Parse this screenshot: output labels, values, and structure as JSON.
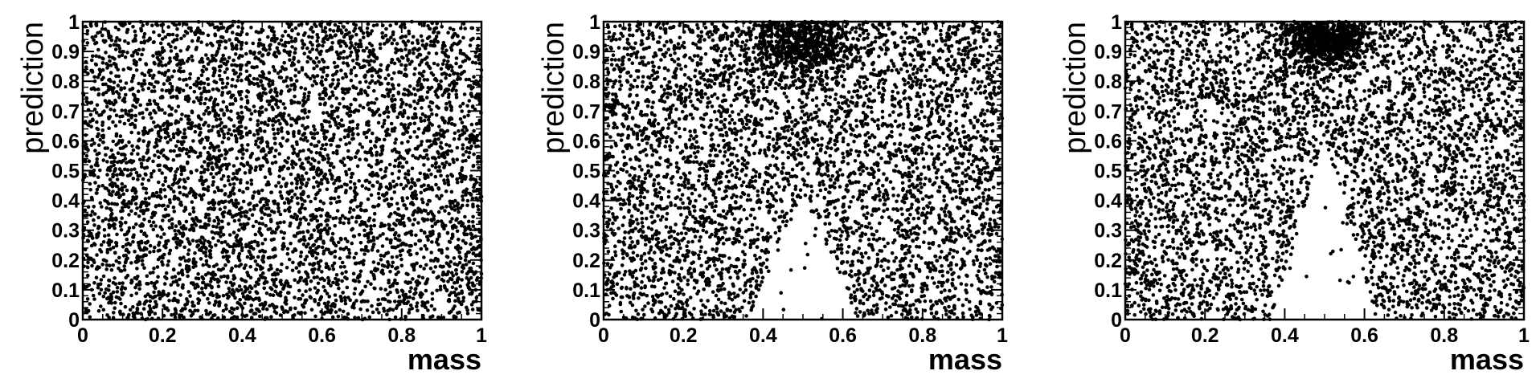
{
  "chart_data": [
    {
      "type": "scatter",
      "xlabel": "mass",
      "ylabel": "prediction",
      "xlim": [
        0,
        1
      ],
      "ylim": [
        0,
        1
      ],
      "x_ticks": [
        "0",
        "0.2",
        "0.4",
        "0.6",
        "0.8",
        "1"
      ],
      "y_ticks": [
        "0",
        "0.1",
        "0.2",
        "0.3",
        "0.4",
        "0.5",
        "0.6",
        "0.7",
        "0.8",
        "0.9",
        "1"
      ],
      "grid": false,
      "point_color": "#000000",
      "distribution": "uniform over the full mass-prediction square, no visible structure"
    },
    {
      "type": "scatter",
      "xlabel": "mass",
      "ylabel": "prediction",
      "xlim": [
        0,
        1
      ],
      "ylim": [
        0,
        1
      ],
      "x_ticks": [
        "0",
        "0.2",
        "0.4",
        "0.6",
        "0.8",
        "1"
      ],
      "y_ticks": [
        "0",
        "0.1",
        "0.2",
        "0.3",
        "0.4",
        "0.5",
        "0.6",
        "0.7",
        "0.8",
        "0.9",
        "1"
      ],
      "grid": false,
      "point_color": "#000000",
      "distribution": "dense cluster near mass 0.5 at prediction above 0.8; sparse region for mass 0.4-0.6 below prediction 0.4"
    },
    {
      "type": "scatter",
      "xlabel": "mass",
      "ylabel": "prediction",
      "xlim": [
        0,
        1
      ],
      "ylim": [
        0,
        1
      ],
      "x_ticks": [
        "0",
        "0.2",
        "0.4",
        "0.6",
        "0.8",
        "1"
      ],
      "y_ticks": [
        "0",
        "0.1",
        "0.2",
        "0.3",
        "0.4",
        "0.5",
        "0.6",
        "0.7",
        "0.8",
        "0.9",
        "1"
      ],
      "grid": false,
      "point_color": "#000000",
      "distribution": "very dense cluster near mass 0.5 at prediction above 0.85; wider empty region for mass 0.38-0.62 below prediction 0.6"
    }
  ]
}
